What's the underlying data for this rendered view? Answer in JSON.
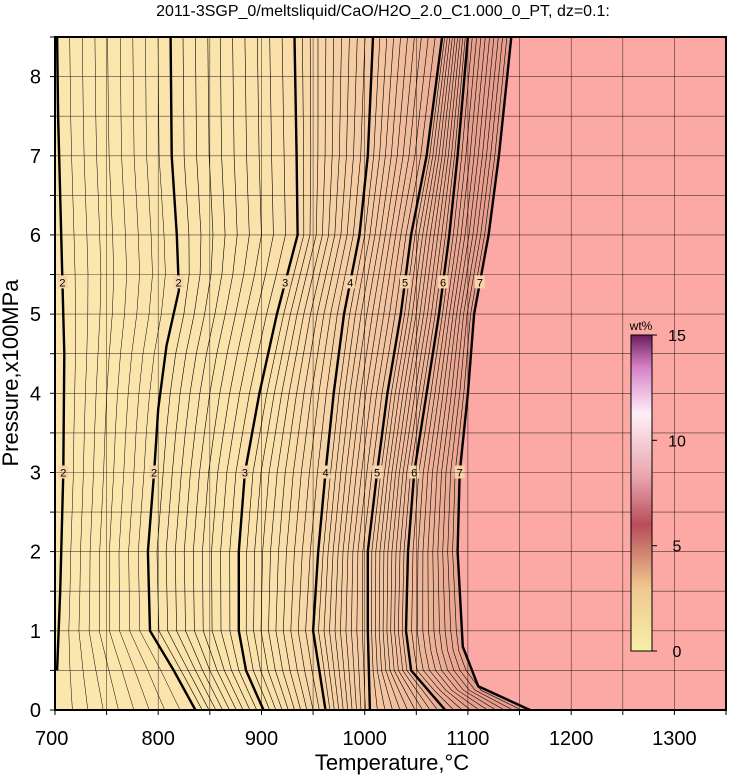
{
  "chart_data": {
    "type": "heatmap",
    "title": "2011-3SGP_0/meltsliquid/CaO/H2O_2.0_C1.000_0_PT, dz=0.1:",
    "xlabel": "Temperature,°C",
    "ylabel": "Pressure,x100MPa",
    "xlim": [
      700,
      1350
    ],
    "ylim": [
      0,
      8.5
    ],
    "x_ticks": [
      700,
      800,
      900,
      1000,
      1100,
      1200,
      1300
    ],
    "y_ticks": [
      0,
      1,
      2,
      3,
      4,
      5,
      6,
      7,
      8
    ],
    "grid": true,
    "colorbar": {
      "unit": "wt%",
      "range": [
        0,
        15
      ],
      "ticks": [
        0,
        5,
        10,
        15
      ],
      "colors": [
        "#f5f0a8",
        "#f0c890",
        "#d4898a",
        "#ffffff",
        "#c34d9e",
        "#6a1d5e"
      ]
    },
    "field_colors": {
      "low": "#fbe7ad",
      "mid": "#f6c9a2",
      "high": "#e9a08e",
      "saturated": "#fca8a4"
    },
    "contours": [
      {
        "level": 2,
        "label": "2",
        "points": [
          [
            702,
            0.5
          ],
          [
            705,
            1.5
          ],
          [
            708,
            3
          ],
          [
            709,
            4.5
          ],
          [
            706,
            6
          ],
          [
            703,
            7.5
          ],
          [
            702,
            8.5
          ]
        ]
      },
      {
        "level": 2,
        "label": "2",
        "points": [
          [
            836,
            0
          ],
          [
            815,
            0.5
          ],
          [
            792,
            1
          ],
          [
            790,
            2
          ],
          [
            796,
            3
          ],
          [
            800,
            3.8
          ],
          [
            808,
            4.6
          ],
          [
            820,
            5.3
          ],
          [
            818,
            6
          ],
          [
            813,
            7
          ],
          [
            812,
            8.5
          ]
        ]
      },
      {
        "level": 3,
        "label": "3",
        "points": [
          [
            902,
            0
          ],
          [
            885,
            0.5
          ],
          [
            878,
            1
          ],
          [
            878,
            2
          ],
          [
            884,
            3
          ],
          [
            898,
            4
          ],
          [
            915,
            5
          ],
          [
            935,
            6
          ],
          [
            934,
            7
          ],
          [
            932,
            8.5
          ]
        ]
      },
      {
        "level": 4,
        "label": "4",
        "points": [
          [
            962,
            0
          ],
          [
            950,
            1
          ],
          [
            955,
            2
          ],
          [
            962,
            3
          ],
          [
            970,
            4
          ],
          [
            980,
            5
          ],
          [
            995,
            6
          ],
          [
            1003,
            7
          ],
          [
            1008,
            8.5
          ]
        ]
      },
      {
        "level": 5,
        "label": "5",
        "points": [
          [
            1005,
            0
          ],
          [
            1003,
            1
          ],
          [
            1003,
            2
          ],
          [
            1012,
            3
          ],
          [
            1022,
            4
          ],
          [
            1035,
            5
          ],
          [
            1045,
            6
          ],
          [
            1060,
            7
          ],
          [
            1075,
            8.5
          ]
        ]
      },
      {
        "level": 6,
        "label": "6",
        "points": [
          [
            1078,
            0
          ],
          [
            1045,
            0.5
          ],
          [
            1040,
            1
          ],
          [
            1042,
            2
          ],
          [
            1048,
            3
          ],
          [
            1060,
            4
          ],
          [
            1072,
            5
          ],
          [
            1082,
            6
          ],
          [
            1090,
            7
          ],
          [
            1100,
            8.5
          ]
        ]
      },
      {
        "level": 7,
        "label": "7",
        "points": [
          [
            1160,
            0
          ],
          [
            1110,
            0.3
          ],
          [
            1095,
            0.8
          ],
          [
            1090,
            2
          ],
          [
            1092,
            3
          ],
          [
            1100,
            4
          ],
          [
            1106,
            5
          ],
          [
            1120,
            6
          ],
          [
            1130,
            7
          ],
          [
            1138,
            8
          ],
          [
            1142,
            8.5
          ]
        ]
      }
    ]
  }
}
